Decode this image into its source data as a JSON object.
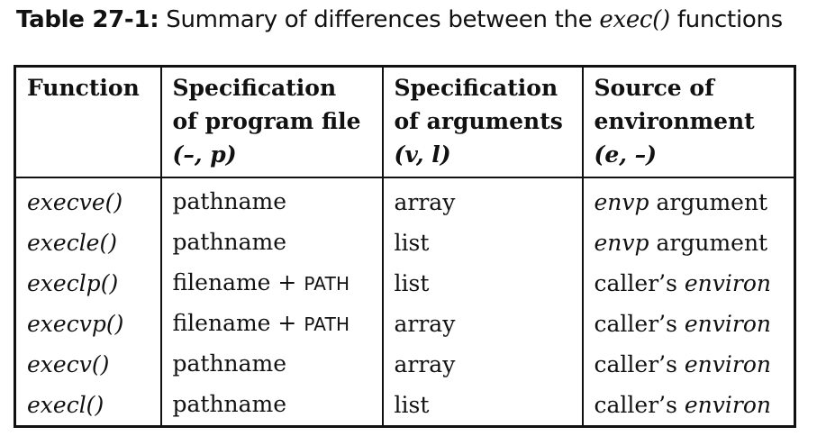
{
  "caption": {
    "label": "Table 27-1:",
    "text_before": " Summary of differences between the ",
    "function_ref": "exec()",
    "text_after": " functions"
  },
  "table": {
    "headers": [
      {
        "line1": "Function",
        "line2": "",
        "param": ""
      },
      {
        "line1": "Specification",
        "line2": "of program file",
        "param": "(–, p)"
      },
      {
        "line1": "Specification",
        "line2": "of arguments",
        "param": "(v, l)"
      },
      {
        "line1": "Source of",
        "line2": "environment",
        "param": "(e, –)"
      }
    ],
    "rows": [
      {
        "function": "execve()",
        "program_file": "pathname",
        "program_file_suffix": "",
        "arguments": "array",
        "env_italic": "envp",
        "env_text": " argument",
        "env_prefix": ""
      },
      {
        "function": "execle()",
        "program_file": "pathname",
        "program_file_suffix": "",
        "arguments": "list",
        "env_italic": "envp",
        "env_text": " argument",
        "env_prefix": ""
      },
      {
        "function": "execlp()",
        "program_file": "filename + ",
        "program_file_suffix": "PATH",
        "arguments": "list",
        "env_prefix": "caller’s ",
        "env_italic": "environ",
        "env_text": ""
      },
      {
        "function": "execvp()",
        "program_file": "filename + ",
        "program_file_suffix": "PATH",
        "arguments": "array",
        "env_prefix": "caller’s ",
        "env_italic": "environ",
        "env_text": ""
      },
      {
        "function": "execv()",
        "program_file": "pathname",
        "program_file_suffix": "",
        "arguments": "array",
        "env_prefix": "caller’s ",
        "env_italic": "environ",
        "env_text": ""
      },
      {
        "function": "execl()",
        "program_file": "pathname",
        "program_file_suffix": "",
        "arguments": "list",
        "env_prefix": "caller’s ",
        "env_italic": "environ",
        "env_text": ""
      }
    ]
  }
}
